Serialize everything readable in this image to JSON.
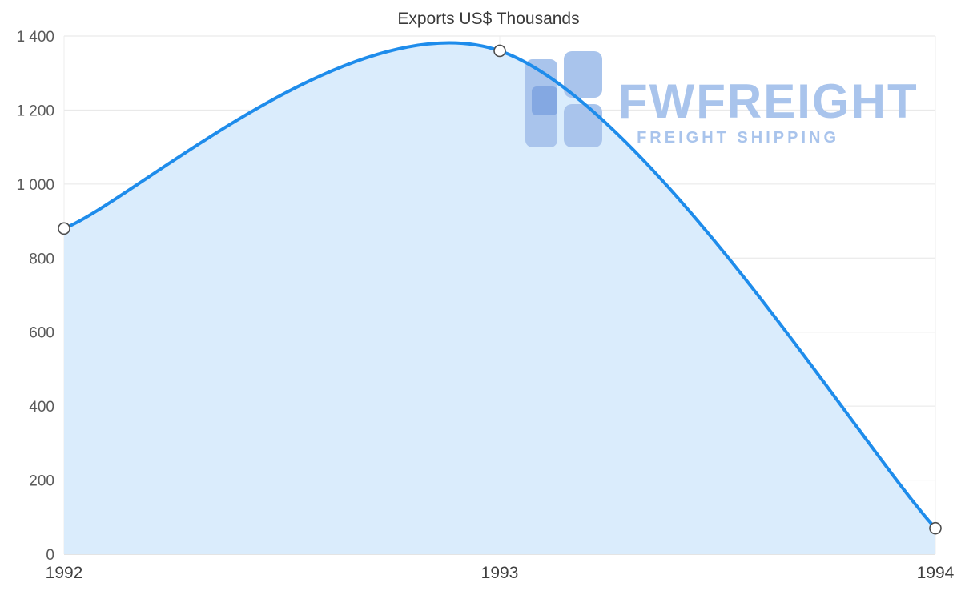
{
  "chart_data": {
    "type": "area",
    "title": "Exports US$ Thousands",
    "x": [
      1992,
      1993,
      1994
    ],
    "x_labels": [
      "1992",
      "1993",
      "1994"
    ],
    "series": [
      {
        "name": "Exports US$ Thousands",
        "values": [
          880,
          1360,
          70
        ]
      }
    ],
    "ylim": [
      0,
      1400
    ],
    "ytick_step": 200,
    "ytick_labels": [
      "0",
      "200",
      "400",
      "600",
      "800",
      "1 000",
      "1 200",
      "1 400"
    ],
    "grid": "horizontal-and-edge-vertical",
    "legend": "none",
    "line_color": "#1e8ceb",
    "fill_color": "#daecfc",
    "marker": {
      "fill": "#ffffff",
      "stroke": "#4d4d4d"
    }
  },
  "watermark": {
    "brand": "FWFREIGHT",
    "tagline": "FREIGHT SHIPPING",
    "color": "#a9c4ec",
    "color_accent": "#84a8e2"
  }
}
